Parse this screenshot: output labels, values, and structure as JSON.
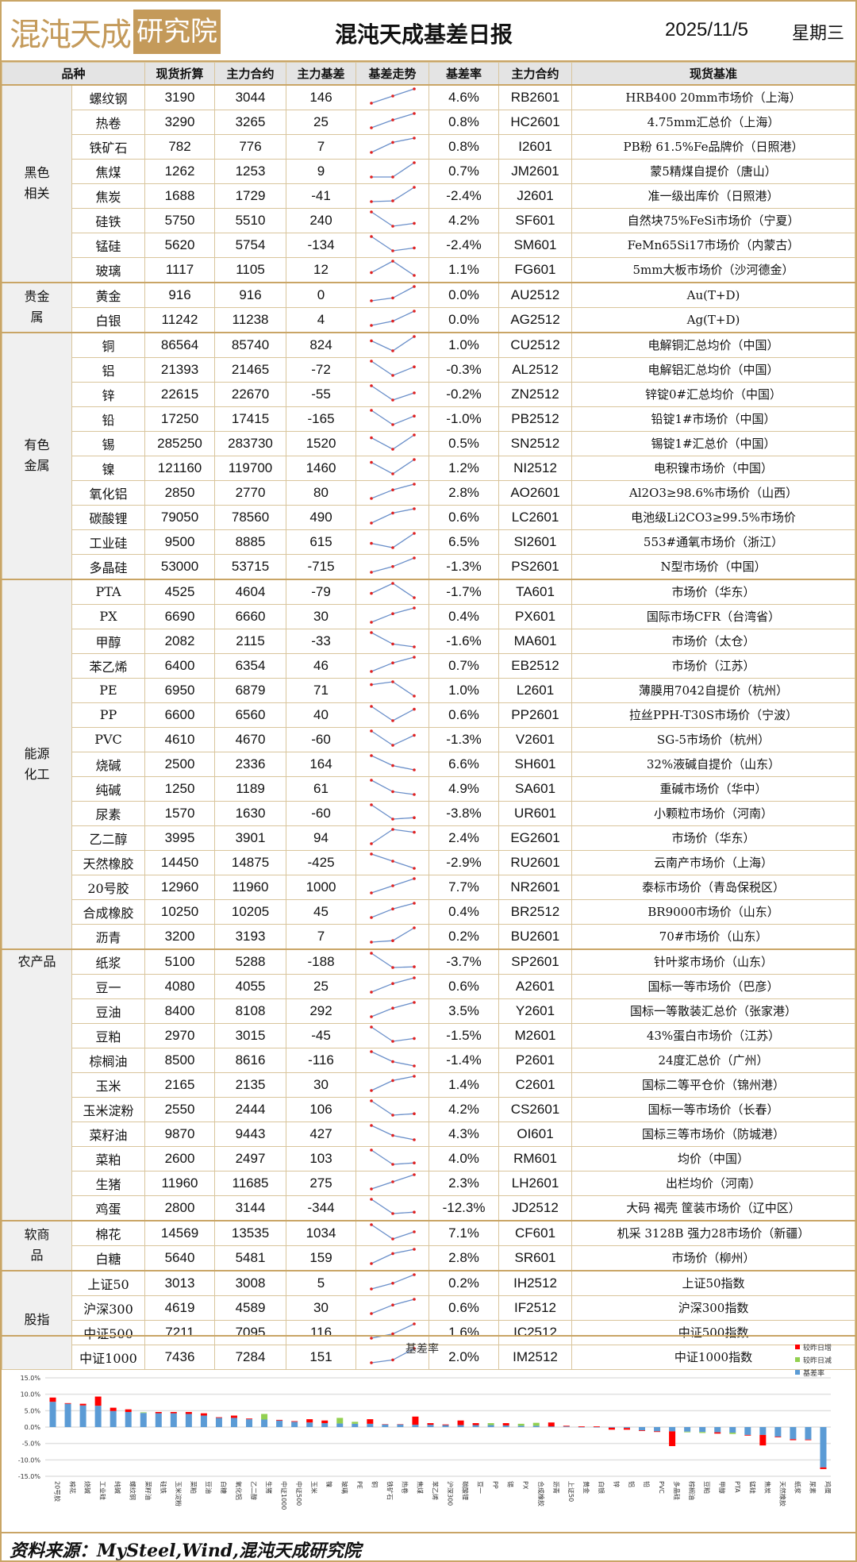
{
  "header": {
    "logo_text": "混沌天成研究院",
    "logo_a": "混沌天成",
    "logo_b": "研究院",
    "title": "混沌天成基差日报",
    "date": "2025/11/5",
    "weekday": "星期三"
  },
  "columns": [
    "品种",
    "现货折算",
    "主力合约",
    "主力基差",
    "基差走势",
    "基差率",
    "主力合约",
    "现货基准"
  ],
  "colors": {
    "border": "#c9a566",
    "brand": "#c49a5a",
    "header_bg": "#e4e4e4",
    "spark_line": "#6a8fc9",
    "spark_dot": "#e02020",
    "bar_base": "#5b9bd5",
    "bar_up": "#ff0000",
    "bar_down": "#92d050"
  },
  "groups": [
    {
      "label": "黑色相关",
      "rows": [
        [
          "螺纹钢",
          "3190",
          "3044",
          "146",
          "4.6%",
          "RB2601",
          "HRB400 20mm市场价（上海）",
          [
            0,
            0.5,
            1
          ]
        ],
        [
          "热卷",
          "3290",
          "3265",
          "25",
          "0.8%",
          "HC2601",
          "4.75mm汇总价（上海）",
          [
            0,
            0.55,
            1
          ]
        ],
        [
          "铁矿石",
          "782",
          "776",
          "7",
          "0.8%",
          "I2601",
          "PB粉 61.5%Fe品牌价（日照港）",
          [
            0,
            0.7,
            1
          ]
        ],
        [
          "焦煤",
          "1262",
          "1253",
          "9",
          "0.7%",
          "JM2601",
          "蒙5精煤自提价（唐山）",
          [
            0,
            0,
            1
          ]
        ],
        [
          "焦炭",
          "1688",
          "1729",
          "-41",
          "-2.4%",
          "J2601",
          "准一级出库价（日照港）",
          [
            0,
            0.05,
            1
          ]
        ],
        [
          "硅铁",
          "5750",
          "5510",
          "240",
          "4.2%",
          "SF601",
          "自然块75%FeSi市场价（宁夏）",
          [
            1,
            0,
            0.2
          ]
        ],
        [
          "锰硅",
          "5620",
          "5754",
          "-134",
          "-2.4%",
          "SM601",
          "FeMn65Si17市场价（内蒙古）",
          [
            1,
            0,
            0.2
          ]
        ],
        [
          "玻璃",
          "1117",
          "1105",
          "12",
          "1.1%",
          "FG601",
          "5mm大板市场价（沙河德金）",
          [
            0.2,
            1,
            0
          ]
        ]
      ]
    },
    {
      "label": "贵金属",
      "rows": [
        [
          "黄金",
          "916",
          "916",
          "0",
          "0.0%",
          "AU2512",
          "Au(T+D)",
          [
            0,
            0.2,
            1
          ]
        ],
        [
          "白银",
          "11242",
          "11238",
          "4",
          "0.0%",
          "AG2512",
          "Ag(T+D)",
          [
            0,
            0.3,
            1
          ]
        ]
      ]
    },
    {
      "label": "有色金属",
      "rows": [
        [
          "铜",
          "86564",
          "85740",
          "824",
          "1.0%",
          "CU2512",
          "电解铜汇总均价（中国）",
          [
            0.7,
            0,
            1
          ]
        ],
        [
          "铝",
          "21393",
          "21465",
          "-72",
          "-0.3%",
          "AL2512",
          "电解铝汇总均价（中国）",
          [
            1,
            0,
            0.6
          ]
        ],
        [
          "锌",
          "22615",
          "22670",
          "-55",
          "-0.2%",
          "ZN2512",
          "锌锭0#汇总均价（中国）",
          [
            1,
            0,
            0.5
          ]
        ],
        [
          "铅",
          "17250",
          "17415",
          "-165",
          "-1.0%",
          "PB2512",
          "铅锭1#市场价（中国）",
          [
            1,
            0,
            0.6
          ]
        ],
        [
          "锡",
          "285250",
          "283730",
          "1520",
          "0.5%",
          "SN2512",
          "锡锭1#汇总价（中国）",
          [
            0.8,
            0,
            1
          ]
        ],
        [
          "镍",
          "121160",
          "119700",
          "1460",
          "1.2%",
          "NI2512",
          "电积镍市场价（中国）",
          [
            0.8,
            0,
            1
          ]
        ],
        [
          "氧化铝",
          "2850",
          "2770",
          "80",
          "2.8%",
          "AO2601",
          "Al2O3≥98.6%市场价（山西）",
          [
            0,
            0.6,
            1
          ]
        ],
        [
          "碳酸锂",
          "79050",
          "78560",
          "490",
          "0.6%",
          "LC2601",
          "电池级Li2CO3≥99.5%市场价",
          [
            0,
            0.7,
            1
          ]
        ],
        [
          "工业硅",
          "9500",
          "8885",
          "615",
          "6.5%",
          "SI2601",
          "553#通氧市场价（浙江）",
          [
            0.3,
            0,
            1
          ]
        ],
        [
          "多晶硅",
          "53000",
          "53715",
          "-715",
          "-1.3%",
          "PS2601",
          "N型市场价（中国）",
          [
            0,
            0.4,
            1
          ]
        ]
      ]
    },
    {
      "label": "能源化工",
      "rows": [
        [
          "PTA",
          "4525",
          "4604",
          "-79",
          "-1.7%",
          "TA601",
          "市场价（华东）",
          [
            0.3,
            1,
            0
          ]
        ],
        [
          "PX",
          "6690",
          "6660",
          "30",
          "0.4%",
          "PX601",
          "国际市场CFR（台湾省）",
          [
            0,
            0.6,
            1
          ]
        ],
        [
          "甲醇",
          "2082",
          "2115",
          "-33",
          "-1.6%",
          "MA601",
          "市场价（太仓）",
          [
            1,
            0.2,
            0
          ]
        ],
        [
          "苯乙烯",
          "6400",
          "6354",
          "46",
          "0.7%",
          "EB2512",
          "市场价（江苏）",
          [
            0,
            0.6,
            1
          ]
        ],
        [
          "PE",
          "6950",
          "6879",
          "71",
          "1.0%",
          "L2601",
          "薄膜用7042自提价（杭州）",
          [
            0.8,
            1,
            0
          ]
        ],
        [
          "PP",
          "6600",
          "6560",
          "40",
          "0.6%",
          "PP2601",
          "拉丝PPH-T30S市场价（宁波）",
          [
            1,
            0,
            0.8
          ]
        ],
        [
          "PVC",
          "4610",
          "4670",
          "-60",
          "-1.3%",
          "V2601",
          "SG-5市场价（杭州）",
          [
            1,
            0,
            0.7
          ]
        ],
        [
          "烧碱",
          "2500",
          "2336",
          "164",
          "6.6%",
          "SH601",
          "32%液碱自提价（山东）",
          [
            1,
            0.3,
            0
          ]
        ],
        [
          "纯碱",
          "1250",
          "1189",
          "61",
          "4.9%",
          "SA601",
          "重碱市场价（华中）",
          [
            1,
            0.2,
            0
          ]
        ],
        [
          "尿素",
          "1570",
          "1630",
          "-60",
          "-3.8%",
          "UR601",
          "小颗粒市场价（河南）",
          [
            1,
            0,
            0.1
          ]
        ],
        [
          "乙二醇",
          "3995",
          "3901",
          "94",
          "2.4%",
          "EG2601",
          "市场价（华东）",
          [
            0,
            1,
            0.8
          ]
        ],
        [
          "天然橡胶",
          "14450",
          "14875",
          "-425",
          "-2.9%",
          "RU2601",
          "云南产市场价（上海）",
          [
            1,
            0.5,
            0
          ]
        ],
        [
          "20号胶",
          "12960",
          "11960",
          "1000",
          "7.7%",
          "NR2601",
          "泰标市场价（青岛保税区）",
          [
            0,
            0.5,
            1
          ]
        ],
        [
          "合成橡胶",
          "10250",
          "10205",
          "45",
          "0.4%",
          "BR2512",
          "BR9000市场价（山东）",
          [
            0,
            0.6,
            1
          ]
        ],
        [
          "沥青",
          "3200",
          "3193",
          "7",
          "0.2%",
          "BU2601",
          "70#市场价（山东）",
          [
            0,
            0.1,
            1
          ]
        ]
      ]
    },
    {
      "label": "农产品",
      "rows": [
        [
          "纸浆",
          "5100",
          "5288",
          "-188",
          "-3.7%",
          "SP2601",
          "针叶浆市场价（山东）",
          [
            1,
            0,
            0.05
          ]
        ],
        [
          "豆一",
          "4080",
          "4055",
          "25",
          "0.6%",
          "A2601",
          "国标一等市场价（巴彦）",
          [
            0,
            0.6,
            1
          ]
        ],
        [
          "豆油",
          "8400",
          "8108",
          "292",
          "3.5%",
          "Y2601",
          "国标一等散装汇总价（张家港）",
          [
            0,
            0.6,
            1
          ]
        ],
        [
          "豆粕",
          "2970",
          "3015",
          "-45",
          "-1.5%",
          "M2601",
          "43%蛋白市场价（江苏）",
          [
            1,
            0,
            0.2
          ]
        ],
        [
          "棕榈油",
          "8500",
          "8616",
          "-116",
          "-1.4%",
          "P2601",
          "24度汇总价（广州）",
          [
            1,
            0.3,
            0
          ]
        ],
        [
          "玉米",
          "2165",
          "2135",
          "30",
          "1.4%",
          "C2601",
          "国标二等平仓价（锦州港）",
          [
            0,
            0.7,
            1
          ]
        ],
        [
          "玉米淀粉",
          "2550",
          "2444",
          "106",
          "4.2%",
          "CS2601",
          "国标一等市场价（长春）",
          [
            1,
            0,
            0.1
          ]
        ],
        [
          "菜籽油",
          "9870",
          "9443",
          "427",
          "4.3%",
          "OI601",
          "国标三等市场价（防城港）",
          [
            1,
            0.3,
            0
          ]
        ],
        [
          "菜粕",
          "2600",
          "2497",
          "103",
          "4.0%",
          "RM601",
          "均价（中国）",
          [
            1,
            0,
            0.1
          ]
        ],
        [
          "生猪",
          "11960",
          "11685",
          "275",
          "2.3%",
          "LH2601",
          "出栏均价（河南）",
          [
            0,
            0.5,
            1
          ]
        ],
        [
          "鸡蛋",
          "2800",
          "3144",
          "-344",
          "-12.3%",
          "JD2512",
          "大码 褐壳 筐装市场价（辽中区）",
          [
            1,
            0,
            0.1
          ]
        ]
      ]
    },
    {
      "label": "软商品",
      "rows": [
        [
          "棉花",
          "14569",
          "13535",
          "1034",
          "7.1%",
          "CF601",
          "机采 3128B 强力28市场价（新疆）",
          [
            1,
            0,
            0.5
          ]
        ],
        [
          "白糖",
          "5640",
          "5481",
          "159",
          "2.8%",
          "SR601",
          "市场价（柳州）",
          [
            0,
            0.7,
            1
          ]
        ]
      ]
    },
    {
      "label": "股指",
      "rows": [
        [
          "上证50",
          "3013",
          "3008",
          "5",
          "0.2%",
          "IH2512",
          "上证50指数",
          [
            0,
            0.4,
            1
          ]
        ],
        [
          "沪深300",
          "4619",
          "4589",
          "30",
          "0.6%",
          "IF2512",
          "沪深300指数",
          [
            0,
            0.6,
            1
          ]
        ],
        [
          "中证500",
          "7211",
          "7095",
          "116",
          "1.6%",
          "IC2512",
          "中证500指数",
          [
            0,
            0.3,
            1
          ]
        ],
        [
          "中证1000",
          "7436",
          "7284",
          "151",
          "2.0%",
          "IM2512",
          "中证1000指数",
          [
            0,
            0.2,
            1
          ]
        ]
      ]
    }
  ],
  "chart_data": {
    "type": "bar",
    "title": "基差率",
    "legend": [
      "较昨日增",
      "较昨日减",
      "基差率"
    ],
    "legend_position": "top-right",
    "ylim": [
      -15,
      15
    ],
    "yticks": [
      "15.0%",
      "10.0%",
      "5.0%",
      "0.0%",
      "-5.0%",
      "-10.0%",
      "-15.0%"
    ],
    "grid": true,
    "categories": [
      "20号胶",
      "棉花",
      "烧碱",
      "工业硅",
      "纯碱",
      "螺纹钢",
      "菜籽油",
      "硅铁",
      "玉米淀粉",
      "菜粕",
      "豆油",
      "白糖",
      "氧化铝",
      "乙二醇",
      "生猪",
      "中证1000",
      "中证500",
      "玉米",
      "镍",
      "玻璃",
      "PE",
      "铜",
      "铁矿石",
      "热卷",
      "焦煤",
      "苯乙烯",
      "沪深300",
      "碳酸锂",
      "豆一",
      "PP",
      "锡",
      "PX",
      "合成橡胶",
      "沥青",
      "上证50",
      "黄金",
      "白银",
      "锌",
      "铝",
      "铅",
      "PVC",
      "多晶硅",
      "棕榈油",
      "豆粕",
      "甲醇",
      "PTA",
      "锰硅",
      "焦炭",
      "天然橡胶",
      "纸浆",
      "尿素",
      "鸡蛋"
    ],
    "series": [
      {
        "name": "基差率",
        "values": [
          7.7,
          7.1,
          6.6,
          6.5,
          4.9,
          4.6,
          4.3,
          4.2,
          4.2,
          4.0,
          3.5,
          2.8,
          2.8,
          2.4,
          2.3,
          2.0,
          1.6,
          1.4,
          1.2,
          1.1,
          1.0,
          1.0,
          0.8,
          0.8,
          0.7,
          0.7,
          0.6,
          0.6,
          0.6,
          0.6,
          0.5,
          0.4,
          0.4,
          0.2,
          0.2,
          0.0,
          0.0,
          -0.2,
          -0.3,
          -1.0,
          -1.3,
          -1.3,
          -1.4,
          -1.5,
          -1.6,
          -1.7,
          -2.4,
          -2.4,
          -2.9,
          -3.7,
          -3.8,
          -12.3
        ]
      },
      {
        "name": "较昨日变化",
        "values": [
          1.3,
          0.2,
          0.5,
          2.8,
          1.0,
          0.8,
          -0.2,
          0.4,
          0.4,
          0.6,
          0.7,
          0.2,
          0.7,
          0.2,
          -1.7,
          0.2,
          0.2,
          1.0,
          0.8,
          -1.7,
          -0.6,
          1.4,
          0.1,
          0.1,
          2.5,
          0.5,
          0.2,
          1.4,
          0.6,
          -0.6,
          0.7,
          -0.6,
          -0.9,
          1.2,
          0.2,
          0.2,
          0.2,
          0.6,
          0.5,
          0.2,
          0.2,
          4.5,
          -0.2,
          -0.3,
          0.4,
          -0.4,
          0.2,
          3.2,
          0.2,
          0.3,
          0.2,
          0.5
        ]
      }
    ]
  },
  "footer": {
    "source": "资料来源：MySteel,Wind,混沌天成研究院"
  }
}
